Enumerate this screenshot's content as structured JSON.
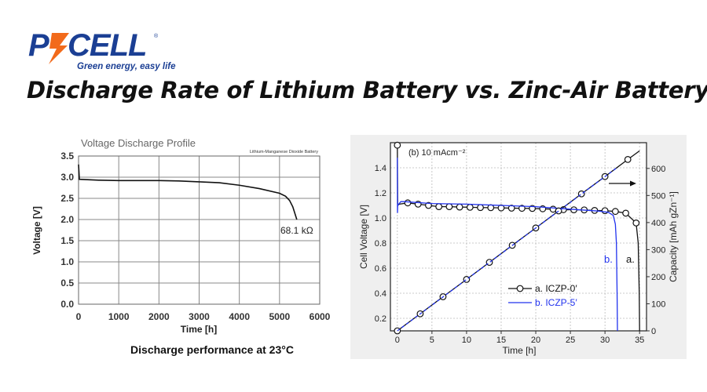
{
  "logo": {
    "brand": "PKCELL",
    "tagline": "Green energy, easy life",
    "colors": {
      "blue": "#1b3f94",
      "orange": "#f26a1b"
    }
  },
  "page_title": "Discharge Rate of Lithium Battery vs. Zinc-Air Battery",
  "chart_data": [
    {
      "type": "line",
      "title": "Voltage Discharge Profile",
      "subtitle": "Lithium-Manganese Dioxide Battery",
      "caption": "Discharge performance at 23°C",
      "xlabel": "Time [h]",
      "ylabel": "Voltage [V]",
      "xlim": [
        0,
        6000
      ],
      "ylim": [
        0,
        3.5
      ],
      "xticks": [
        "0",
        "1000",
        "2000",
        "3000",
        "4000",
        "5000",
        "6000"
      ],
      "yticks": [
        "0.0",
        "0.5",
        "1.0",
        "1.5",
        "2.0",
        "2.5",
        "3.0",
        "3.5"
      ],
      "grid": true,
      "annotation": "68.1 kΩ",
      "series": [
        {
          "color": "#111111",
          "x": [
            0,
            20,
            500,
            1000,
            2000,
            2500,
            3000,
            3500,
            4000,
            4500,
            5000,
            5150,
            5250,
            5330,
            5430
          ],
          "y": [
            3.3,
            2.95,
            2.93,
            2.92,
            2.92,
            2.91,
            2.89,
            2.87,
            2.81,
            2.73,
            2.62,
            2.55,
            2.45,
            2.3,
            2.0
          ]
        }
      ]
    },
    {
      "type": "line",
      "annotation": "(b) 10 mAcm⁻²",
      "xlabel": "Time [h]",
      "ylabel": "Cell Voltage [V]",
      "y2label": "Capacity [mAh gZn⁻¹]",
      "xlim": [
        -1,
        36
      ],
      "ylim": [
        0.1,
        1.6
      ],
      "y2lim": [
        0,
        695
      ],
      "xticks": [
        "0",
        "5",
        "10",
        "15",
        "20",
        "25",
        "30",
        "35"
      ],
      "yticks": [
        "0.2",
        "0.4",
        "0.6",
        "0.8",
        "1.0",
        "1.2",
        "1.4"
      ],
      "y2ticks": [
        "0",
        "100",
        "200",
        "300",
        "400",
        "500",
        "600"
      ],
      "grid": true,
      "legend": "center-right",
      "curve_labels": [
        "b.",
        "a."
      ],
      "series": [
        {
          "name": "a. ICZP-0′",
          "color": "#111111",
          "marker": "circle",
          "axis": "voltage",
          "x": [
            0,
            0.05,
            0.3,
            1.5,
            3,
            4.5,
            6,
            7.5,
            9,
            10.5,
            12,
            13.5,
            15,
            16.5,
            18,
            19.5,
            21,
            22.5,
            24,
            25.5,
            27,
            28.5,
            30,
            31.5,
            33,
            34.5,
            34.8,
            34.95,
            35
          ],
          "y": [
            1.58,
            1.1,
            1.11,
            1.12,
            1.11,
            1.1,
            1.09,
            1.09,
            1.087,
            1.085,
            1.083,
            1.082,
            1.08,
            1.078,
            1.077,
            1.076,
            1.073,
            1.07,
            1.066,
            1.065,
            1.064,
            1.06,
            1.058,
            1.052,
            1.038,
            0.96,
            0.8,
            0.4,
            0.1
          ],
          "marker_every": [
            0,
            3,
            4,
            5,
            6,
            7,
            8,
            9,
            10,
            11,
            12,
            13,
            14,
            15,
            16,
            17,
            18,
            19,
            20,
            21,
            22,
            23,
            24,
            25
          ]
        },
        {
          "name": "b. ICZP-5′",
          "color": "#2233ee",
          "axis": "voltage",
          "x": [
            0,
            0.02,
            0.05,
            0.5,
            1,
            5,
            10,
            15,
            20,
            25,
            29,
            30.5,
            31.2,
            31.5,
            31.65,
            31.75,
            31.8
          ],
          "y": [
            1.48,
            1.04,
            1.1,
            1.13,
            1.13,
            1.115,
            1.11,
            1.1,
            1.09,
            1.07,
            1.055,
            1.045,
            1.02,
            0.95,
            0.8,
            0.4,
            0.1
          ]
        },
        {
          "name": "a. ICZP-0′ capacity",
          "color": "#111111",
          "marker": "circle",
          "axis": "capacity",
          "x": [
            0,
            3.3,
            6.6,
            10,
            13.3,
            16.6,
            20,
            23.3,
            26.6,
            30,
            33.3,
            35
          ],
          "y": [
            0,
            63,
            126,
            190,
            253,
            316,
            380,
            443,
            506,
            570,
            633,
            665
          ]
        },
        {
          "name": "b. ICZP-5′ capacity",
          "color": "#2233ee",
          "dash": true,
          "axis": "capacity",
          "x": [
            0,
            31.8
          ],
          "y": [
            0,
            604
          ]
        }
      ]
    }
  ]
}
